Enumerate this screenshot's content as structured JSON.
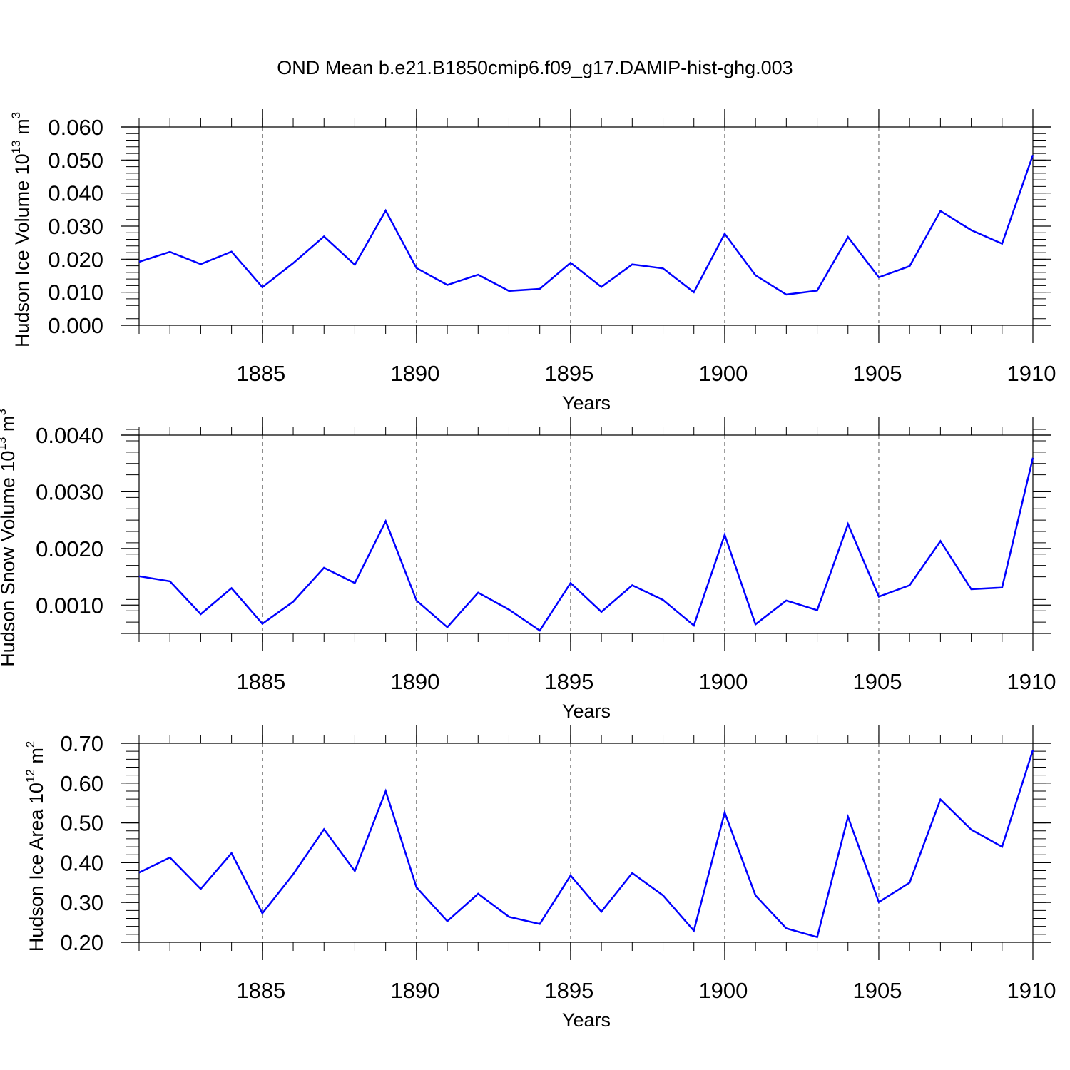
{
  "title": "OND Mean b.e21.B1850cmip6.f09_g17.DAMIP-hist-ghg.003",
  "colors": {
    "line": "#0000ff",
    "axis": "#000000",
    "grid": "#555555"
  },
  "chart_data": [
    {
      "type": "line",
      "ylabel": "Hudson Ice Volume",
      "yunit_base": "10",
      "yunit_exp": "13",
      "yunit_suffix": "m",
      "yunit_suffix_exp": "3",
      "xlabel": "Years",
      "xlim": [
        1881,
        1910
      ],
      "ylim": [
        0.0,
        0.06
      ],
      "yticks": [
        0.0,
        0.01,
        0.02,
        0.03,
        0.04,
        0.05,
        0.06
      ],
      "ytick_labels": [
        "0.000",
        "0.010",
        "0.020",
        "0.030",
        "0.040",
        "0.050",
        "0.060"
      ],
      "yminor_step": 0.002,
      "xticks": [
        1885,
        1890,
        1895,
        1900,
        1905,
        1910
      ],
      "xtick_labels": [
        "1885",
        "1890",
        "1895",
        "1900",
        "1905",
        "1910"
      ],
      "grid": "vertical-dashed",
      "x": [
        1881,
        1882,
        1883,
        1884,
        1885,
        1886,
        1887,
        1888,
        1889,
        1890,
        1891,
        1892,
        1893,
        1894,
        1895,
        1896,
        1897,
        1898,
        1899,
        1900,
        1901,
        1902,
        1903,
        1904,
        1905,
        1906,
        1907,
        1908,
        1909,
        1910
      ],
      "series": [
        {
          "values": [
            0.0192,
            0.0222,
            0.0185,
            0.0223,
            0.0115,
            0.0188,
            0.0269,
            0.0183,
            0.0347,
            0.0173,
            0.0122,
            0.0153,
            0.0104,
            0.011,
            0.0189,
            0.0116,
            0.0184,
            0.0172,
            0.01,
            0.0277,
            0.0151,
            0.0093,
            0.0105,
            0.0267,
            0.0145,
            0.0179,
            0.0346,
            0.0288,
            0.0247,
            0.0515
          ]
        }
      ]
    },
    {
      "type": "line",
      "ylabel": "Hudson Snow Volume",
      "yunit_base": "10",
      "yunit_exp": "13",
      "yunit_suffix": "m",
      "yunit_suffix_exp": "3",
      "xlabel": "Years",
      "xlim": [
        1881,
        1910
      ],
      "ylim": [
        0.0005,
        0.004
      ],
      "yticks": [
        0.001,
        0.002,
        0.003,
        0.004
      ],
      "ytick_labels": [
        "0.0010",
        "0.0020",
        "0.0030",
        "0.0040"
      ],
      "yminor_step": 0.0002,
      "xticks": [
        1885,
        1890,
        1895,
        1900,
        1905,
        1910
      ],
      "xtick_labels": [
        "1885",
        "1890",
        "1895",
        "1900",
        "1905",
        "1910"
      ],
      "grid": "vertical-dashed",
      "x": [
        1881,
        1882,
        1883,
        1884,
        1885,
        1886,
        1887,
        1888,
        1889,
        1890,
        1891,
        1892,
        1893,
        1894,
        1895,
        1896,
        1897,
        1898,
        1899,
        1900,
        1901,
        1902,
        1903,
        1904,
        1905,
        1906,
        1907,
        1908,
        1909,
        1910
      ],
      "series": [
        {
          "values": [
            0.00151,
            0.00142,
            0.00084,
            0.0013,
            0.00067,
            0.00106,
            0.00166,
            0.00139,
            0.00248,
            0.00108,
            0.00061,
            0.00122,
            0.00092,
            0.00055,
            0.00139,
            0.00088,
            0.00135,
            0.00109,
            0.00064,
            0.00224,
            0.00066,
            0.00108,
            0.00091,
            0.00243,
            0.00115,
            0.00135,
            0.00213,
            0.00128,
            0.00131,
            0.0036
          ]
        }
      ]
    },
    {
      "type": "line",
      "ylabel": "Hudson Ice Area",
      "yunit_base": "10",
      "yunit_exp": "12",
      "yunit_suffix": "m",
      "yunit_suffix_exp": "2",
      "xlabel": "Years",
      "xlim": [
        1881,
        1910
      ],
      "ylim": [
        0.2,
        0.7
      ],
      "yticks": [
        0.2,
        0.3,
        0.4,
        0.5,
        0.6,
        0.7
      ],
      "ytick_labels": [
        "0.20",
        "0.30",
        "0.40",
        "0.50",
        "0.60",
        "0.70"
      ],
      "yminor_step": 0.02,
      "xticks": [
        1885,
        1890,
        1895,
        1900,
        1905,
        1910
      ],
      "xtick_labels": [
        "1885",
        "1890",
        "1895",
        "1900",
        "1905",
        "1910"
      ],
      "grid": "vertical-dashed",
      "x": [
        1881,
        1882,
        1883,
        1884,
        1885,
        1886,
        1887,
        1888,
        1889,
        1890,
        1891,
        1892,
        1893,
        1894,
        1895,
        1896,
        1897,
        1898,
        1899,
        1900,
        1901,
        1902,
        1903,
        1904,
        1905,
        1906,
        1907,
        1908,
        1909,
        1910
      ],
      "series": [
        {
          "values": [
            0.375,
            0.413,
            0.334,
            0.424,
            0.273,
            0.371,
            0.484,
            0.379,
            0.58,
            0.338,
            0.253,
            0.322,
            0.264,
            0.246,
            0.368,
            0.277,
            0.374,
            0.318,
            0.229,
            0.526,
            0.318,
            0.235,
            0.213,
            0.515,
            0.301,
            0.35,
            0.559,
            0.483,
            0.44,
            0.683
          ]
        }
      ]
    }
  ]
}
